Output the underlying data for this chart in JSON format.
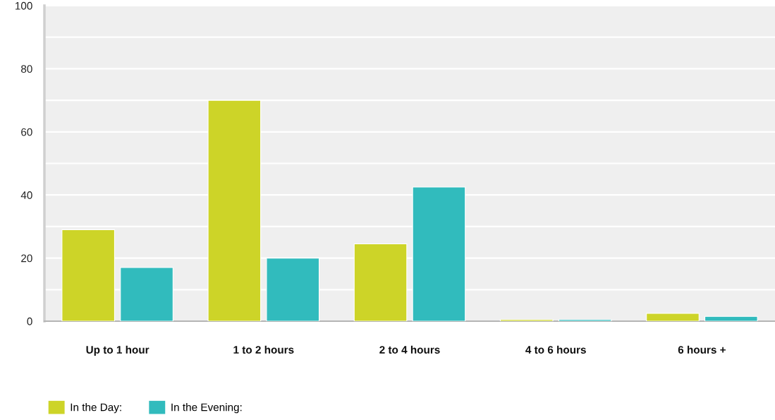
{
  "chart_data": {
    "type": "bar",
    "categories": [
      "Up to 1 hour",
      "1 to 2 hours",
      "2 to 4 hours",
      "4 to 6 hours",
      "6 hours +"
    ],
    "series": [
      {
        "name": "In the Day:",
        "color": "#cdd428",
        "values": [
          29,
          70,
          24.5,
          0.5,
          2.5
        ]
      },
      {
        "name": "In the Evening:",
        "color": "#31bbbd",
        "values": [
          17,
          20,
          42.5,
          0.5,
          1.5
        ]
      }
    ],
    "ylim": [
      0,
      100
    ],
    "yticks": [
      0,
      {
        "value": 10,
        "label": null
      },
      20,
      {
        "value": 30,
        "label": null
      },
      40,
      {
        "value": 50,
        "label": null
      },
      60,
      {
        "value": 70,
        "label": null
      },
      80,
      {
        "value": 90,
        "label": null
      },
      100
    ],
    "grid": "y",
    "legend": "bottom"
  }
}
